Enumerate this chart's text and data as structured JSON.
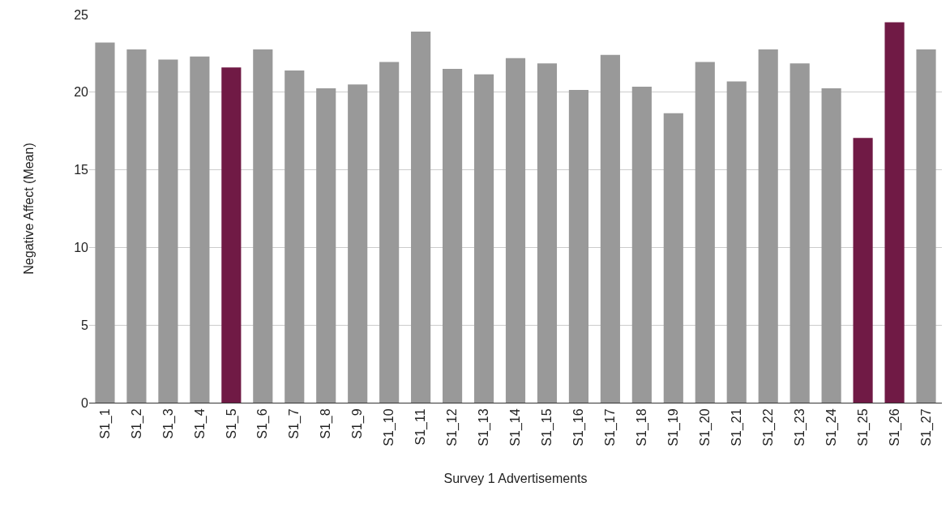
{
  "chart_data": {
    "type": "bar",
    "xlabel": "Survey 1 Advertisements",
    "ylabel": "Negative Affect (Mean)",
    "categories": [
      "S1_1",
      "S1_2",
      "S1_3",
      "S1_4",
      "S1_5",
      "S1_6",
      "S1_7",
      "S1_8",
      "S1_9",
      "S1_10",
      "S1_11",
      "S1_12",
      "S1_13",
      "S1_14",
      "S1_15",
      "S1_16",
      "S1_17",
      "S1_18",
      "S1_19",
      "S1_20",
      "S1_21",
      "S1_22",
      "S1_23",
      "S1_24",
      "S1_25",
      "S1_26",
      "S1_27"
    ],
    "values": [
      23.2,
      22.75,
      22.1,
      22.3,
      21.6,
      22.75,
      21.4,
      20.25,
      20.5,
      21.95,
      23.9,
      21.5,
      21.15,
      22.2,
      21.85,
      20.15,
      22.4,
      20.35,
      18.65,
      21.95,
      20.7,
      22.75,
      21.85,
      20.25,
      17.05,
      24.5,
      22.75
    ],
    "colors": [
      "#999999",
      "#999999",
      "#999999",
      "#999999",
      "#701a45",
      "#999999",
      "#999999",
      "#999999",
      "#999999",
      "#999999",
      "#999999",
      "#999999",
      "#999999",
      "#999999",
      "#999999",
      "#999999",
      "#999999",
      "#999999",
      "#999999",
      "#999999",
      "#999999",
      "#999999",
      "#999999",
      "#999999",
      "#701a45",
      "#701a45",
      "#999999"
    ],
    "ylim": [
      0,
      25
    ],
    "yticks": [
      0,
      5,
      10,
      15,
      20,
      25
    ],
    "grid": "y"
  }
}
